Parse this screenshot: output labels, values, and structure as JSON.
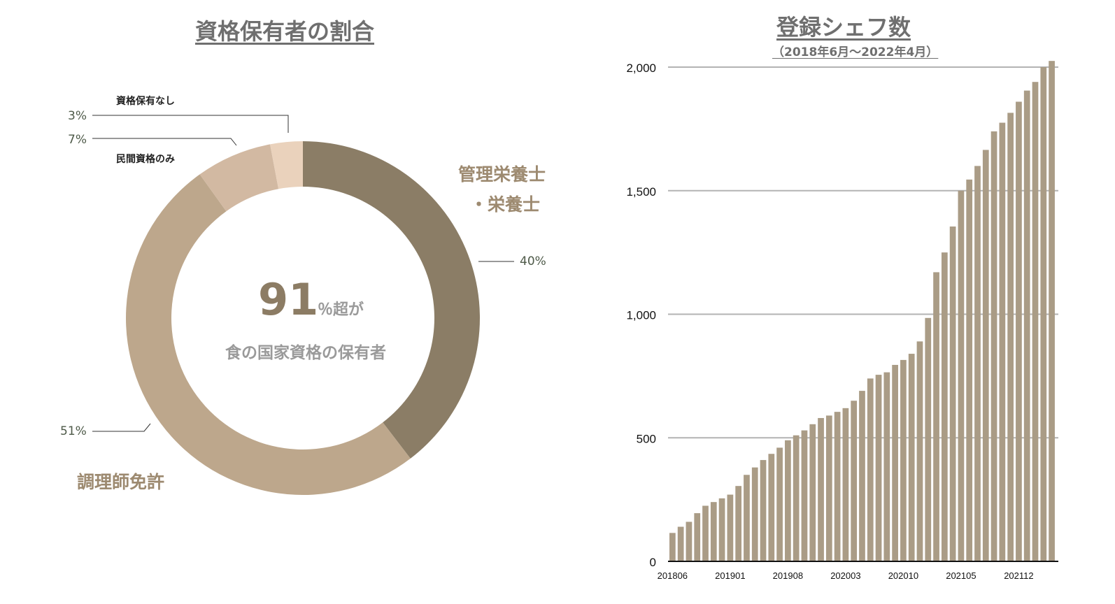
{
  "left": {
    "title": "資格保有者の割合",
    "center_number": "91",
    "center_suffix": "％超が",
    "center_desc": "食の国家資格の保有者",
    "labels": {
      "none": "資格保有なし",
      "private": "民間資格のみ",
      "nutritionist_line1": "管理栄養士",
      "nutritionist_line2": "・栄養士",
      "cook": "調理師免許"
    },
    "percents": {
      "none": "3%",
      "private": "7%",
      "nutritionist": "40%",
      "cook": "51%"
    }
  },
  "right": {
    "title": "登録シェフ数",
    "subtitle": "（2018年6月～2022年4月）"
  },
  "colors": {
    "nutritionist": "#8b7d66",
    "cook": "#bda78c",
    "private": "#d2b9a2",
    "none": "#ead2bc",
    "bar": "#aa9c86",
    "grid": "#b3b3b3"
  },
  "chart_data": [
    {
      "type": "pie",
      "title": "資格保有者の割合",
      "categories": [
        "管理栄養士・栄養士",
        "調理師免許",
        "民間資格のみ",
        "資格保有なし"
      ],
      "values": [
        40,
        51,
        7,
        3
      ],
      "unit": "%"
    },
    {
      "type": "bar",
      "title": "登録シェフ数",
      "subtitle": "（2018年6月～2022年4月）",
      "categories": [
        "201806",
        "201807",
        "201808",
        "201809",
        "201810",
        "201811",
        "201812",
        "201901",
        "201902",
        "201903",
        "201904",
        "201905",
        "201906",
        "201907",
        "201908",
        "201909",
        "201910",
        "201911",
        "201912",
        "202001",
        "202002",
        "202003",
        "202004",
        "202005",
        "202006",
        "202007",
        "202008",
        "202009",
        "202010",
        "202011",
        "202012",
        "202101",
        "202102",
        "202103",
        "202104",
        "202105",
        "202106",
        "202107",
        "202108",
        "202109",
        "202110",
        "202111",
        "202112",
        "202201",
        "202202",
        "202203",
        "202204"
      ],
      "values": [
        115,
        140,
        160,
        195,
        225,
        240,
        255,
        270,
        305,
        350,
        380,
        410,
        435,
        460,
        490,
        510,
        530,
        555,
        580,
        590,
        605,
        620,
        650,
        690,
        740,
        755,
        765,
        795,
        815,
        840,
        890,
        985,
        1170,
        1250,
        1355,
        1500,
        1545,
        1600,
        1665,
        1740,
        1775,
        1815,
        1860,
        1905,
        1940,
        2000,
        2025
      ],
      "tick_labels": [
        "201806",
        "201901",
        "201908",
        "202003",
        "202010",
        "202105",
        "202112"
      ],
      "y_ticks": [
        "0",
        "500",
        "1,000",
        "1,500",
        "2,000"
      ],
      "ylim": [
        0,
        2000
      ],
      "grid": true
    }
  ]
}
